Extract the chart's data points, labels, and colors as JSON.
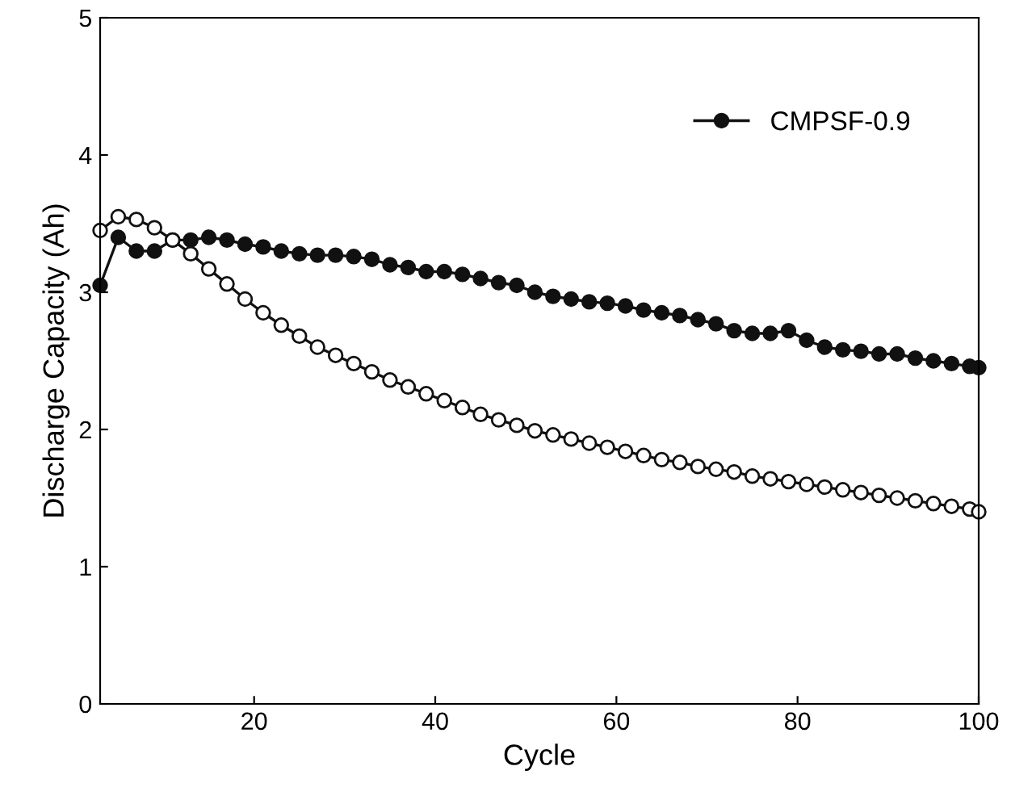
{
  "chart_data": {
    "type": "line",
    "xlabel": "Cycle",
    "ylabel": "Discharge Capacity (Ah)",
    "x": [
      3,
      5,
      7,
      9,
      11,
      13,
      15,
      17,
      19,
      21,
      23,
      25,
      27,
      29,
      31,
      33,
      35,
      37,
      39,
      41,
      43,
      45,
      47,
      49,
      51,
      53,
      55,
      57,
      59,
      61,
      63,
      65,
      67,
      69,
      71,
      73,
      75,
      77,
      79,
      81,
      83,
      85,
      87,
      89,
      91,
      93,
      95,
      97,
      99,
      100
    ],
    "series": [
      {
        "name": "CMPSF-0.9",
        "color": "#111111",
        "values": [
          3.05,
          3.4,
          3.3,
          3.3,
          3.38,
          3.38,
          3.4,
          3.38,
          3.35,
          3.33,
          3.3,
          3.28,
          3.27,
          3.27,
          3.26,
          3.24,
          3.2,
          3.18,
          3.15,
          3.15,
          3.13,
          3.1,
          3.07,
          3.05,
          3.0,
          2.97,
          2.95,
          2.93,
          2.92,
          2.9,
          2.87,
          2.85,
          2.83,
          2.8,
          2.77,
          2.72,
          2.7,
          2.7,
          2.72,
          2.65,
          2.6,
          2.58,
          2.57,
          2.55,
          2.55,
          2.52,
          2.5,
          2.48,
          2.46,
          2.45
        ]
      },
      {
        "color": "#111111",
        "values": [
          3.45,
          3.55,
          3.53,
          3.47,
          3.38,
          3.28,
          3.17,
          3.06,
          2.95,
          2.85,
          2.76,
          2.68,
          2.6,
          2.54,
          2.48,
          2.42,
          2.36,
          2.31,
          2.26,
          2.21,
          2.16,
          2.11,
          2.07,
          2.03,
          1.99,
          1.96,
          1.93,
          1.9,
          1.87,
          1.84,
          1.81,
          1.78,
          1.76,
          1.73,
          1.71,
          1.69,
          1.66,
          1.64,
          1.62,
          1.6,
          1.58,
          1.56,
          1.54,
          1.52,
          1.5,
          1.48,
          1.46,
          1.44,
          1.42,
          1.4
        ]
      }
    ],
    "xlim": [
      3,
      100
    ],
    "ylim": [
      0,
      5
    ],
    "xticks": [
      20,
      40,
      60,
      80,
      100
    ],
    "yticks": [
      0,
      1,
      2,
      3,
      4,
      5
    ],
    "grid": false,
    "legend": "top right",
    "marker": "circle",
    "line_style": "solid"
  }
}
